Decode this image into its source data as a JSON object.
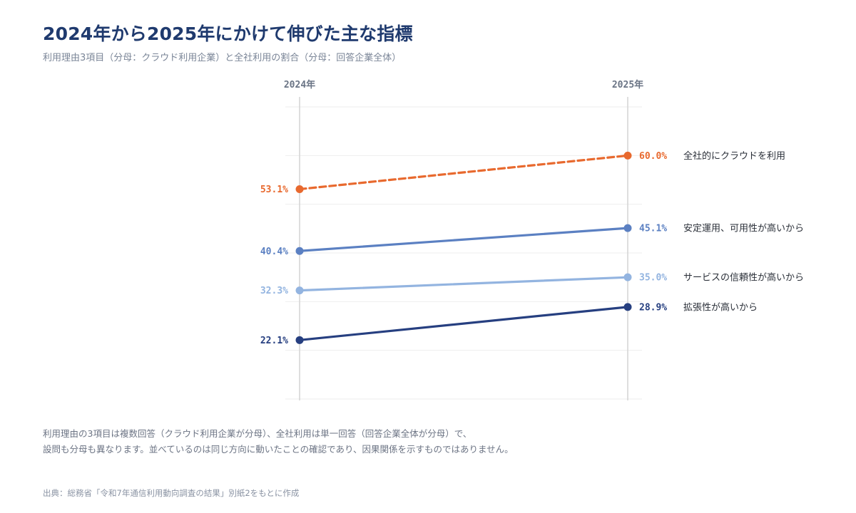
{
  "header": {
    "title": "2024年から2025年にかけて伸びた主な指標",
    "subtitle": "利用理由3項目（分母：クラウド利用企業）と全社利用の割合（分母：回答企業全体）"
  },
  "chart_data": {
    "type": "line",
    "x": [
      "2024年",
      "2025年"
    ],
    "ylim": [
      10,
      70
    ],
    "grid": true,
    "legend": "right-inline",
    "value_format": "percent",
    "series": [
      {
        "name": "全社的にクラウドを利用",
        "values": [
          53.1,
          60.0
        ],
        "color": "#e8692e",
        "style": "dashed",
        "labels": [
          "53.1%",
          "60.0%"
        ]
      },
      {
        "name": "安定運用、可用性が高いから",
        "values": [
          40.4,
          45.1
        ],
        "color": "#5b80c2",
        "style": "solid",
        "labels": [
          "40.4%",
          "45.1%"
        ]
      },
      {
        "name": "サービスの信頼性が高いから",
        "values": [
          32.3,
          35.0
        ],
        "color": "#93b4e0",
        "style": "solid",
        "labels": [
          "32.3%",
          "35.0%"
        ]
      },
      {
        "name": "拡張性が高いから",
        "values": [
          22.1,
          28.9
        ],
        "color": "#263f80",
        "style": "solid",
        "labels": [
          "22.1%",
          "28.9%"
        ]
      }
    ]
  },
  "notes": {
    "line1": "利用理由の3項目は複数回答（クラウド利用企業が分母）、全社利用は単一回答（回答企業全体が分母）で、",
    "line2": "設問も分母も異なります。並べているのは同じ方向に動いたことの確認であり、因果関係を示すものではありません。"
  },
  "source": "出典：総務省「令和7年通信利用動向調査の結果」別紙2をもとに作成"
}
